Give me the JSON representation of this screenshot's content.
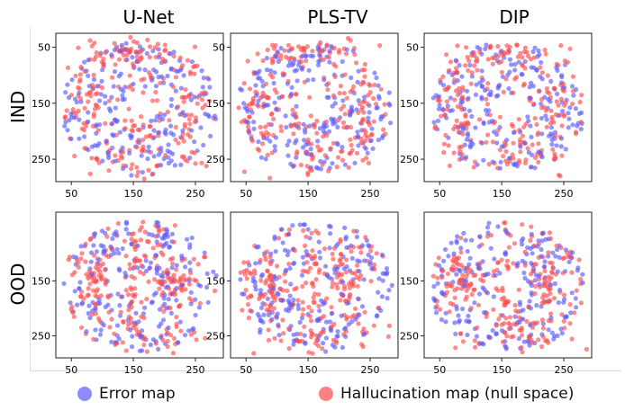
{
  "columns": [
    "U-Net",
    "PLS-TV",
    "DIP"
  ],
  "rows": [
    "IND",
    "OOD"
  ],
  "colors": {
    "error": "#5b5bff",
    "halluc": "#ff4d4d"
  },
  "legend": {
    "error_label": "Error map",
    "halluc_label": "Hallucination map (null space)"
  },
  "chart_data": [
    {
      "type": "scatter",
      "row": "IND",
      "col": "U-Net",
      "xlim": [
        25,
        295
      ],
      "ylim": [
        25,
        290
      ],
      "xticks": [
        "50",
        "150",
        "250"
      ],
      "yticks": [
        "50",
        "150",
        "250"
      ],
      "series": [
        {
          "name": "Error map"
        },
        {
          "name": "Hallucination map (null space)"
        }
      ]
    },
    {
      "type": "scatter",
      "row": "IND",
      "col": "PLS-TV",
      "xlim": [
        25,
        295
      ],
      "ylim": [
        25,
        290
      ],
      "xticks": [
        "50",
        "150",
        "250"
      ],
      "yticks": [
        "50",
        "150",
        "250"
      ],
      "series": [
        {
          "name": "Error map"
        },
        {
          "name": "Hallucination map (null space)"
        }
      ]
    },
    {
      "type": "scatter",
      "row": "IND",
      "col": "DIP",
      "xlim": [
        25,
        295
      ],
      "ylim": [
        25,
        290
      ],
      "xticks": [
        "50",
        "150",
        "250"
      ],
      "yticks": [
        "50",
        "150",
        "250"
      ],
      "series": [
        {
          "name": "Error map"
        },
        {
          "name": "Hallucination map (null space)"
        }
      ]
    },
    {
      "type": "scatter",
      "row": "OOD",
      "col": "U-Net",
      "xlim": [
        25,
        295
      ],
      "ylim": [
        25,
        290
      ],
      "xticks": [
        "50",
        "150",
        "250"
      ],
      "yticks": [
        "150",
        "250"
      ],
      "series": [
        {
          "name": "Error map"
        },
        {
          "name": "Hallucination map (null space)"
        }
      ]
    },
    {
      "type": "scatter",
      "row": "OOD",
      "col": "PLS-TV",
      "xlim": [
        25,
        295
      ],
      "ylim": [
        25,
        290
      ],
      "xticks": [
        "50",
        "150",
        "250"
      ],
      "yticks": [
        "150",
        "250"
      ],
      "series": [
        {
          "name": "Error map"
        },
        {
          "name": "Hallucination map (null space)"
        }
      ]
    },
    {
      "type": "scatter",
      "row": "OOD",
      "col": "DIP",
      "xlim": [
        25,
        295
      ],
      "ylim": [
        25,
        290
      ],
      "xticks": [
        "50",
        "150",
        "250"
      ],
      "yticks": [
        "150",
        "250"
      ],
      "series": [
        {
          "name": "Error map"
        },
        {
          "name": "Hallucination map (null space)"
        }
      ]
    }
  ]
}
